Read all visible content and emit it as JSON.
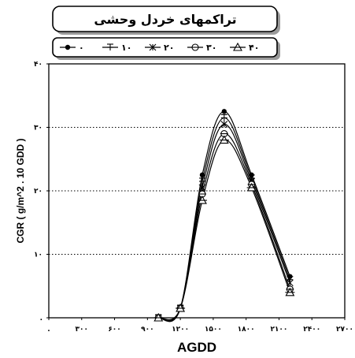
{
  "chart_data": {
    "type": "line",
    "title": "تراکمهای خردل وحشی",
    "xlabel": "AGDD",
    "ylabel": "CGR ( g/m^2 . 10 GDD )",
    "xlim": [
      0,
      2700
    ],
    "ylim": [
      0,
      40
    ],
    "x_ticks": [
      0,
      300,
      600,
      900,
      1200,
      1500,
      1800,
      2100,
      2400,
      2700
    ],
    "x_tick_labels": [
      ".",
      "۳۰۰",
      "۶۰۰",
      "۹۰۰",
      "۱۲۰۰",
      "۱۵۰۰",
      "۱۸۰۰",
      "۲۱۰۰",
      "۲۴۰۰",
      "۲۷۰۰"
    ],
    "y_ticks": [
      0,
      10,
      20,
      30,
      40
    ],
    "y_tick_labels": [
      ".",
      "۱۰",
      "۲۰",
      "۳۰",
      "۴۰"
    ],
    "grid": "horizontal dotted",
    "legend_position": "top",
    "x": [
      1000,
      1200,
      1400,
      1600,
      1850,
      2200
    ],
    "series": [
      {
        "name": "۰",
        "marker": "filled-circle",
        "values": [
          0,
          1.5,
          22.5,
          32.5,
          22.5,
          6.5
        ]
      },
      {
        "name": "۱۰",
        "marker": "cross",
        "values": [
          0,
          1.5,
          21.5,
          31.5,
          22.0,
          6.0
        ]
      },
      {
        "name": "۲۰",
        "marker": "asterisk",
        "values": [
          0,
          1.5,
          20.5,
          30.5,
          21.5,
          5.5
        ]
      },
      {
        "name": "۳۰",
        "marker": "circle-cross",
        "values": [
          0,
          1.5,
          19.5,
          29.0,
          21.0,
          4.5
        ]
      },
      {
        "name": "۴۰",
        "marker": "triangle-cross",
        "values": [
          0,
          1.5,
          18.5,
          28.0,
          20.5,
          4.0
        ]
      }
    ]
  }
}
